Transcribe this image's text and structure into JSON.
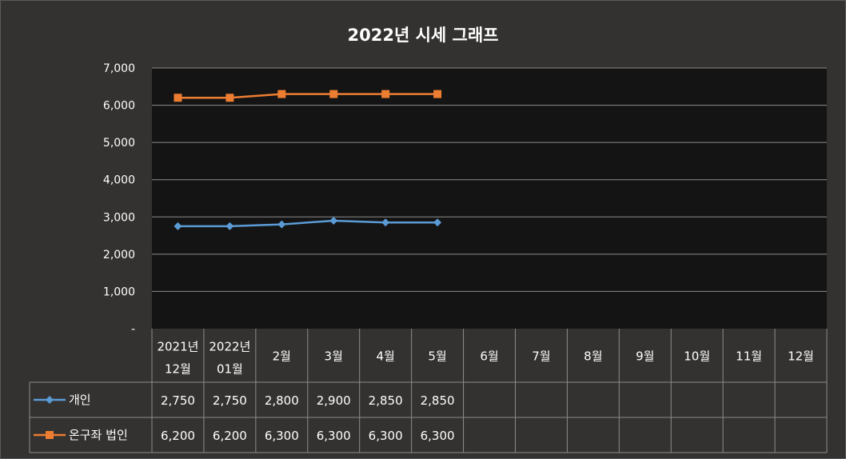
{
  "chart_data": {
    "type": "line",
    "title": "2022년 시세 그래프",
    "categories": [
      [
        "2021년",
        "12월"
      ],
      [
        "2022년",
        "01월"
      ],
      [
        "2월"
      ],
      [
        "3월"
      ],
      [
        "4월"
      ],
      [
        "5월"
      ],
      [
        "6월"
      ],
      [
        "7월"
      ],
      [
        "8월"
      ],
      [
        "9월"
      ],
      [
        "10월"
      ],
      [
        "11월"
      ],
      [
        "12월"
      ]
    ],
    "ylim": [
      0,
      7000
    ],
    "yticks": [
      "-",
      "1,000",
      "2,000",
      "3,000",
      "4,000",
      "5,000",
      "6,000",
      "7,000"
    ],
    "grid": true,
    "legend": "data-table",
    "series": [
      {
        "name": "개인",
        "color": "#5b9bd5",
        "marker": "diamond",
        "values": [
          2750,
          2750,
          2800,
          2900,
          2850,
          2850,
          null,
          null,
          null,
          null,
          null,
          null,
          null
        ],
        "labels": [
          "2,750",
          "2,750",
          "2,800",
          "2,900",
          "2,850",
          "2,850",
          "",
          "",
          "",
          "",
          "",
          "",
          ""
        ]
      },
      {
        "name": "온구좌 법인",
        "color": "#ed7d31",
        "marker": "square",
        "values": [
          6200,
          6200,
          6300,
          6300,
          6300,
          6300,
          null,
          null,
          null,
          null,
          null,
          null,
          null
        ],
        "labels": [
          "6,200",
          "6,200",
          "6,300",
          "6,300",
          "6,300",
          "6,300",
          "",
          "",
          "",
          "",
          "",
          "",
          ""
        ]
      }
    ]
  },
  "colors": {
    "background": "#333230",
    "plot_area": "#141414",
    "grid": "#8c8c8c",
    "text": "#ffffff"
  }
}
